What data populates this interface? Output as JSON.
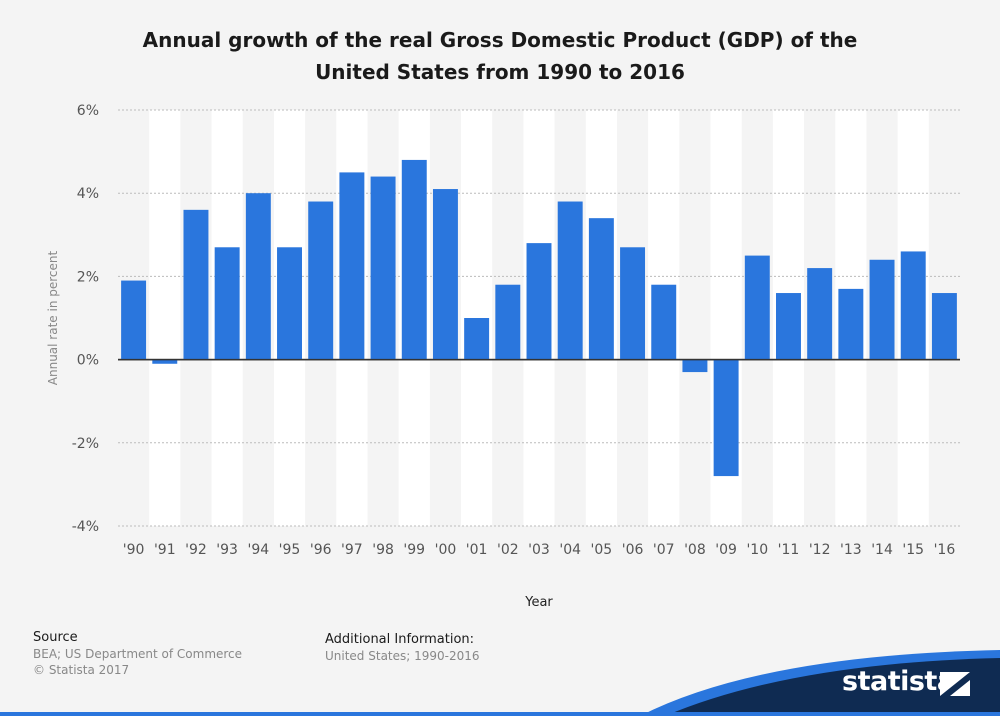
{
  "title_lines": [
    "Annual growth of the real Gross Domestic Product (GDP) of the",
    "United States from 1990 to 2016"
  ],
  "chart_data": {
    "type": "bar",
    "title": "Annual growth of the real Gross Domestic Product (GDP) of the United States from 1990 to 2016",
    "xlabel": "Year",
    "ylabel": "Annual rate in percent",
    "categories": [
      "'90",
      "'91",
      "'92",
      "'93",
      "'94",
      "'95",
      "'96",
      "'97",
      "'98",
      "'99",
      "'00",
      "'01",
      "'02",
      "'03",
      "'04",
      "'05",
      "'06",
      "'07",
      "'08",
      "'09",
      "'10",
      "'11",
      "'12",
      "'13",
      "'14",
      "'15",
      "'16"
    ],
    "values": [
      1.9,
      -0.1,
      3.6,
      2.7,
      4.0,
      2.7,
      3.8,
      4.5,
      4.4,
      4.8,
      4.1,
      1.0,
      1.8,
      2.8,
      3.8,
      3.4,
      2.7,
      1.8,
      -0.3,
      -2.8,
      2.5,
      1.6,
      2.2,
      1.7,
      2.4,
      2.6,
      1.6
    ],
    "ylim": [
      -4,
      6
    ],
    "yticks": [
      6,
      4,
      2,
      0,
      -2,
      -4
    ],
    "ytick_labels": [
      "6%",
      "4%",
      "2%",
      "0%",
      "-2%",
      "-4%"
    ],
    "bar_color": "#2a76dd",
    "grid": true,
    "legend": "none"
  },
  "footer": {
    "source_label": "Source",
    "source_lines": [
      "BEA; US Department of Commerce",
      "© Statista 2017"
    ],
    "info_label": "Additional Information:",
    "info_text": "United States; 1990-2016"
  },
  "brand": {
    "name": "statista",
    "color": "#0f2b52",
    "accent": "#2a76dd"
  }
}
